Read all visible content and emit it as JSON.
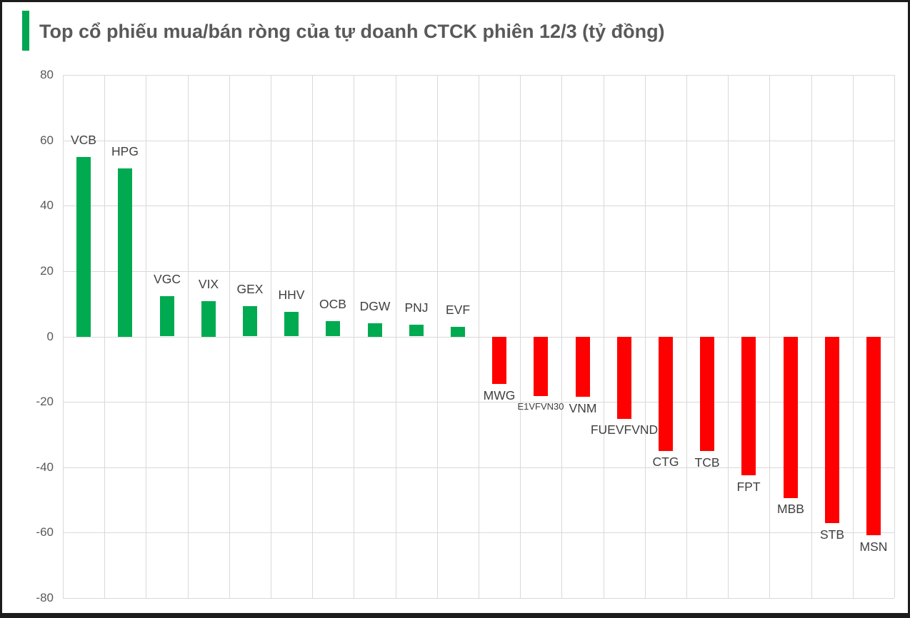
{
  "title": {
    "text": "Top cổ phiếu mua/bán ròng của tự doanh CTCK phiên 12/3 (tỷ đồng)",
    "accent_color": "#00A651"
  },
  "chart_data": {
    "type": "bar",
    "title": "Top cổ phiếu mua/bán ròng của tự doanh CTCK phiên 12/3 (tỷ đồng)",
    "unit": "tỷ đồng",
    "categories": [
      "VCB",
      "HPG",
      "VGC",
      "VIX",
      "GEX",
      "HHV",
      "OCB",
      "DGW",
      "PNJ",
      "EVF",
      "MWG",
      "E1VFVN30",
      "VNM",
      "FUEVFVND",
      "CTG",
      "TCB",
      "FPT",
      "MBB",
      "STB",
      "MSN"
    ],
    "values": [
      55,
      51.5,
      12.3,
      10.9,
      9.2,
      7.5,
      4.6,
      4.1,
      3.5,
      3.0,
      -14.5,
      -18.1,
      -18.4,
      -25,
      -34.9,
      -35,
      -42.4,
      -49.3,
      -57,
      -60.7
    ],
    "positive_color": "#00AA50",
    "negative_color": "#FE0000",
    "label_color": "#404040",
    "tick_color": "#595959",
    "gridline_color": "#d9d9d9",
    "ylim": [
      -80,
      80
    ],
    "y_tick_step": 20,
    "y_tick_labels": [
      "80",
      "60",
      "40",
      "20",
      "0",
      "-20",
      "-40",
      "-60",
      "-80"
    ],
    "grid": true,
    "legend": "none",
    "small_label_categories": [
      "E1VFVN30"
    ]
  }
}
